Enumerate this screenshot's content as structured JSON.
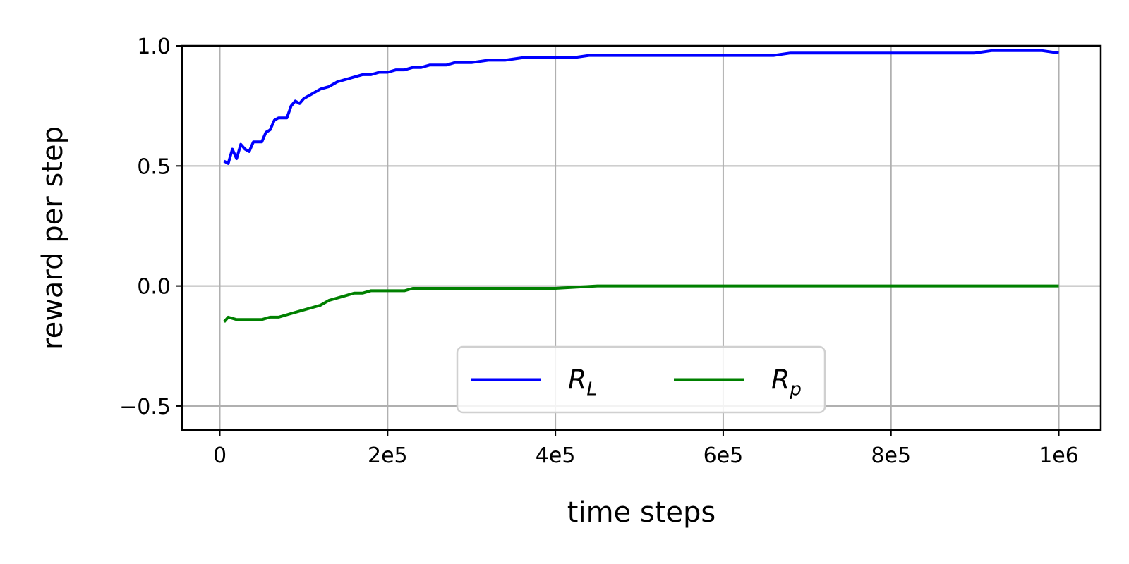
{
  "chart_data": {
    "type": "line",
    "xlabel": "time steps",
    "ylabel": "reward per step",
    "xlim": [
      -45000,
      1050000
    ],
    "ylim": [
      -0.6,
      1.0
    ],
    "x_ticks": [
      {
        "value": 0,
        "label": "0"
      },
      {
        "value": 200000,
        "label": "2e5"
      },
      {
        "value": 400000,
        "label": "4e5"
      },
      {
        "value": 600000,
        "label": "6e5"
      },
      {
        "value": 800000,
        "label": "8e5"
      },
      {
        "value": 1000000,
        "label": "1e6"
      }
    ],
    "y_ticks": [
      {
        "value": 1.0,
        "label": "1.0"
      },
      {
        "value": 0.5,
        "label": "0.5"
      },
      {
        "value": 0.0,
        "label": "0.0"
      },
      {
        "value": -0.5,
        "label": "−0.5"
      }
    ],
    "grid": true,
    "legend": {
      "placement": "lower center",
      "columns": 2
    },
    "series": [
      {
        "name": "R",
        "subscript": "L",
        "color": "#0000ff",
        "x": [
          5000,
          10000,
          15000,
          20000,
          25000,
          30000,
          35000,
          40000,
          45000,
          50000,
          55000,
          60000,
          65000,
          70000,
          75000,
          80000,
          85000,
          90000,
          95000,
          100000,
          110000,
          120000,
          130000,
          140000,
          150000,
          160000,
          170000,
          180000,
          190000,
          200000,
          210000,
          220000,
          230000,
          240000,
          250000,
          260000,
          270000,
          280000,
          290000,
          300000,
          320000,
          340000,
          360000,
          380000,
          400000,
          420000,
          440000,
          460000,
          480000,
          500000,
          520000,
          540000,
          560000,
          580000,
          600000,
          620000,
          640000,
          660000,
          680000,
          700000,
          720000,
          740000,
          760000,
          780000,
          800000,
          820000,
          840000,
          860000,
          880000,
          900000,
          920000,
          940000,
          960000,
          980000,
          1000000
        ],
        "y": [
          0.52,
          0.51,
          0.57,
          0.53,
          0.59,
          0.57,
          0.56,
          0.6,
          0.6,
          0.6,
          0.64,
          0.65,
          0.69,
          0.7,
          0.7,
          0.7,
          0.75,
          0.77,
          0.76,
          0.78,
          0.8,
          0.82,
          0.83,
          0.85,
          0.86,
          0.87,
          0.88,
          0.88,
          0.89,
          0.89,
          0.9,
          0.9,
          0.91,
          0.91,
          0.92,
          0.92,
          0.92,
          0.93,
          0.93,
          0.93,
          0.94,
          0.94,
          0.95,
          0.95,
          0.95,
          0.95,
          0.96,
          0.96,
          0.96,
          0.96,
          0.96,
          0.96,
          0.96,
          0.96,
          0.96,
          0.96,
          0.96,
          0.96,
          0.97,
          0.97,
          0.97,
          0.97,
          0.97,
          0.97,
          0.97,
          0.97,
          0.97,
          0.97,
          0.97,
          0.97,
          0.98,
          0.98,
          0.98,
          0.98,
          0.97
        ]
      },
      {
        "name": "R",
        "subscript": "p",
        "color": "#008000",
        "x": [
          5000,
          10000,
          20000,
          30000,
          40000,
          50000,
          60000,
          70000,
          80000,
          90000,
          100000,
          110000,
          120000,
          130000,
          140000,
          150000,
          160000,
          170000,
          180000,
          190000,
          200000,
          210000,
          220000,
          230000,
          240000,
          260000,
          280000,
          300000,
          350000,
          400000,
          450000,
          500000,
          550000,
          600000,
          650000,
          700000,
          750000,
          800000,
          850000,
          900000,
          950000,
          1000000
        ],
        "y": [
          -0.15,
          -0.13,
          -0.14,
          -0.14,
          -0.14,
          -0.14,
          -0.13,
          -0.13,
          -0.12,
          -0.11,
          -0.1,
          -0.09,
          -0.08,
          -0.06,
          -0.05,
          -0.04,
          -0.03,
          -0.03,
          -0.02,
          -0.02,
          -0.02,
          -0.02,
          -0.02,
          -0.01,
          -0.01,
          -0.01,
          -0.01,
          -0.01,
          -0.01,
          -0.01,
          0.0,
          0.0,
          0.0,
          0.0,
          0.0,
          0.0,
          0.0,
          0.0,
          0.0,
          0.0,
          0.0,
          0.0
        ]
      }
    ]
  }
}
